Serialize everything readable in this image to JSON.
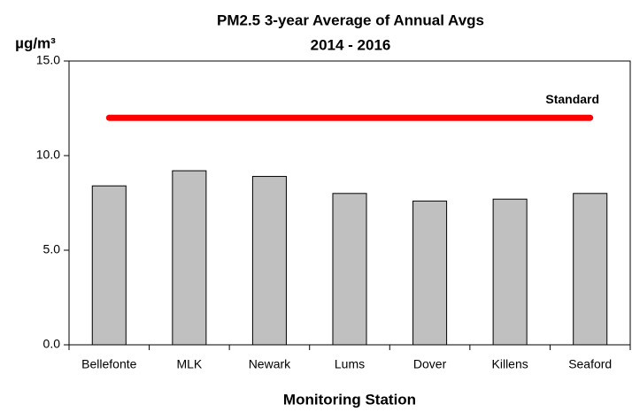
{
  "chart_data": {
    "type": "bar",
    "title": [
      "PM2.5 3-year Average of Annual Avgs",
      "2014 - 2016"
    ],
    "y_label": "µg/m³",
    "x_label": "Monitoring Station",
    "categories": [
      "Bellefonte",
      "MLK",
      "Newark",
      "Lums",
      "Dover",
      "Killens",
      "Seaford"
    ],
    "values": [
      8.4,
      9.2,
      8.9,
      8.0,
      7.6,
      7.7,
      8.0
    ],
    "color": "#c0c0c0",
    "ylim": [
      0,
      15
    ],
    "yticks": [
      {
        "value": 0,
        "label": "0.0"
      },
      {
        "value": 5,
        "label": "5.0"
      },
      {
        "value": 10,
        "label": "10.0"
      },
      {
        "value": 15,
        "label": "15.0"
      }
    ],
    "grid": false,
    "reference_line": {
      "label": "Standard",
      "value": 12,
      "color": "#ff0000"
    }
  }
}
